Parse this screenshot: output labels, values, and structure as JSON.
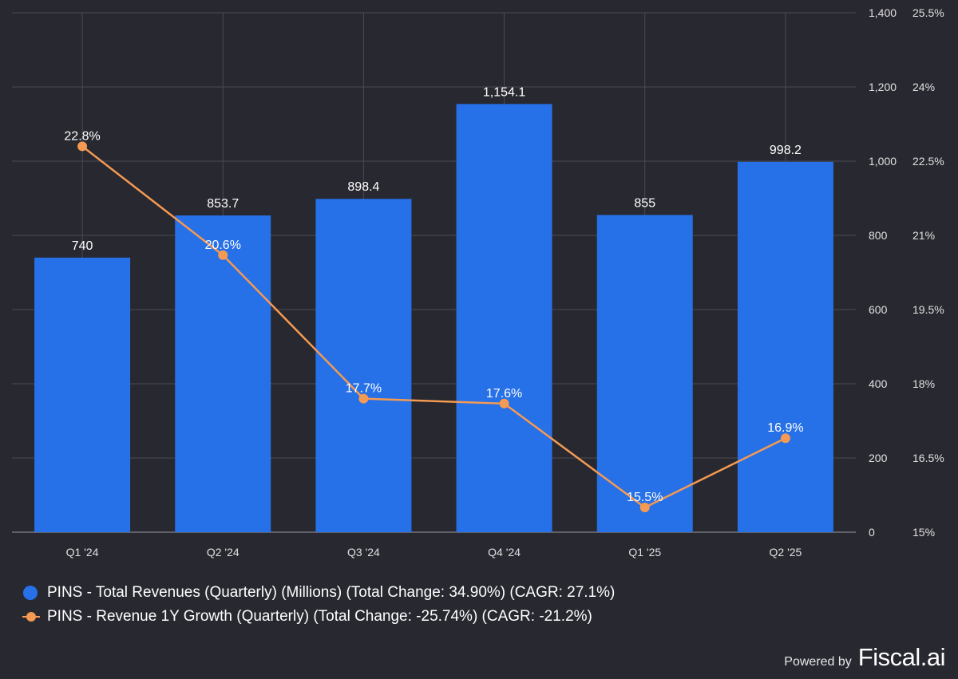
{
  "chart_data": {
    "type": "bar+line",
    "categories": [
      "Q1 '24",
      "Q2 '24",
      "Q3 '24",
      "Q4 '24",
      "Q1 '25",
      "Q2 '25"
    ],
    "series": [
      {
        "name": "PINS - Total Revenues (Quarterly) (Millions) (Total Change: 34.90%) (CAGR: 27.1%)",
        "type": "bar",
        "axis": "left",
        "values": [
          740,
          853.7,
          898.4,
          1154.1,
          855,
          998.2
        ],
        "labels": [
          "740",
          "853.7",
          "898.4",
          "1,154.1",
          "855",
          "998.2"
        ]
      },
      {
        "name": "PINS - Revenue 1Y Growth (Quarterly) (Total Change: -25.74%) (CAGR: -21.2%)",
        "type": "line",
        "axis": "right",
        "values": [
          22.8,
          20.6,
          17.7,
          17.6,
          15.5,
          16.9
        ],
        "labels": [
          "22.8%",
          "20.6%",
          "17.7%",
          "17.6%",
          "15.5%",
          "16.9%"
        ]
      }
    ],
    "y_left": {
      "range": [
        0,
        1400
      ],
      "ticks": [
        "0",
        "200",
        "400",
        "600",
        "800",
        "1,000",
        "1,200",
        "1,400"
      ]
    },
    "y_right": {
      "range": [
        15,
        25.5
      ],
      "ticks": [
        "15%",
        "16.5%",
        "18%",
        "19.5%",
        "21%",
        "22.5%",
        "24%",
        "25.5%"
      ]
    },
    "colors": {
      "bar": "#2670E8",
      "line": "#F59A52",
      "grid": "#4a4a55",
      "background": "#282830"
    }
  },
  "footer": {
    "powered_by": "Powered by",
    "brand": "Fiscal.ai"
  }
}
